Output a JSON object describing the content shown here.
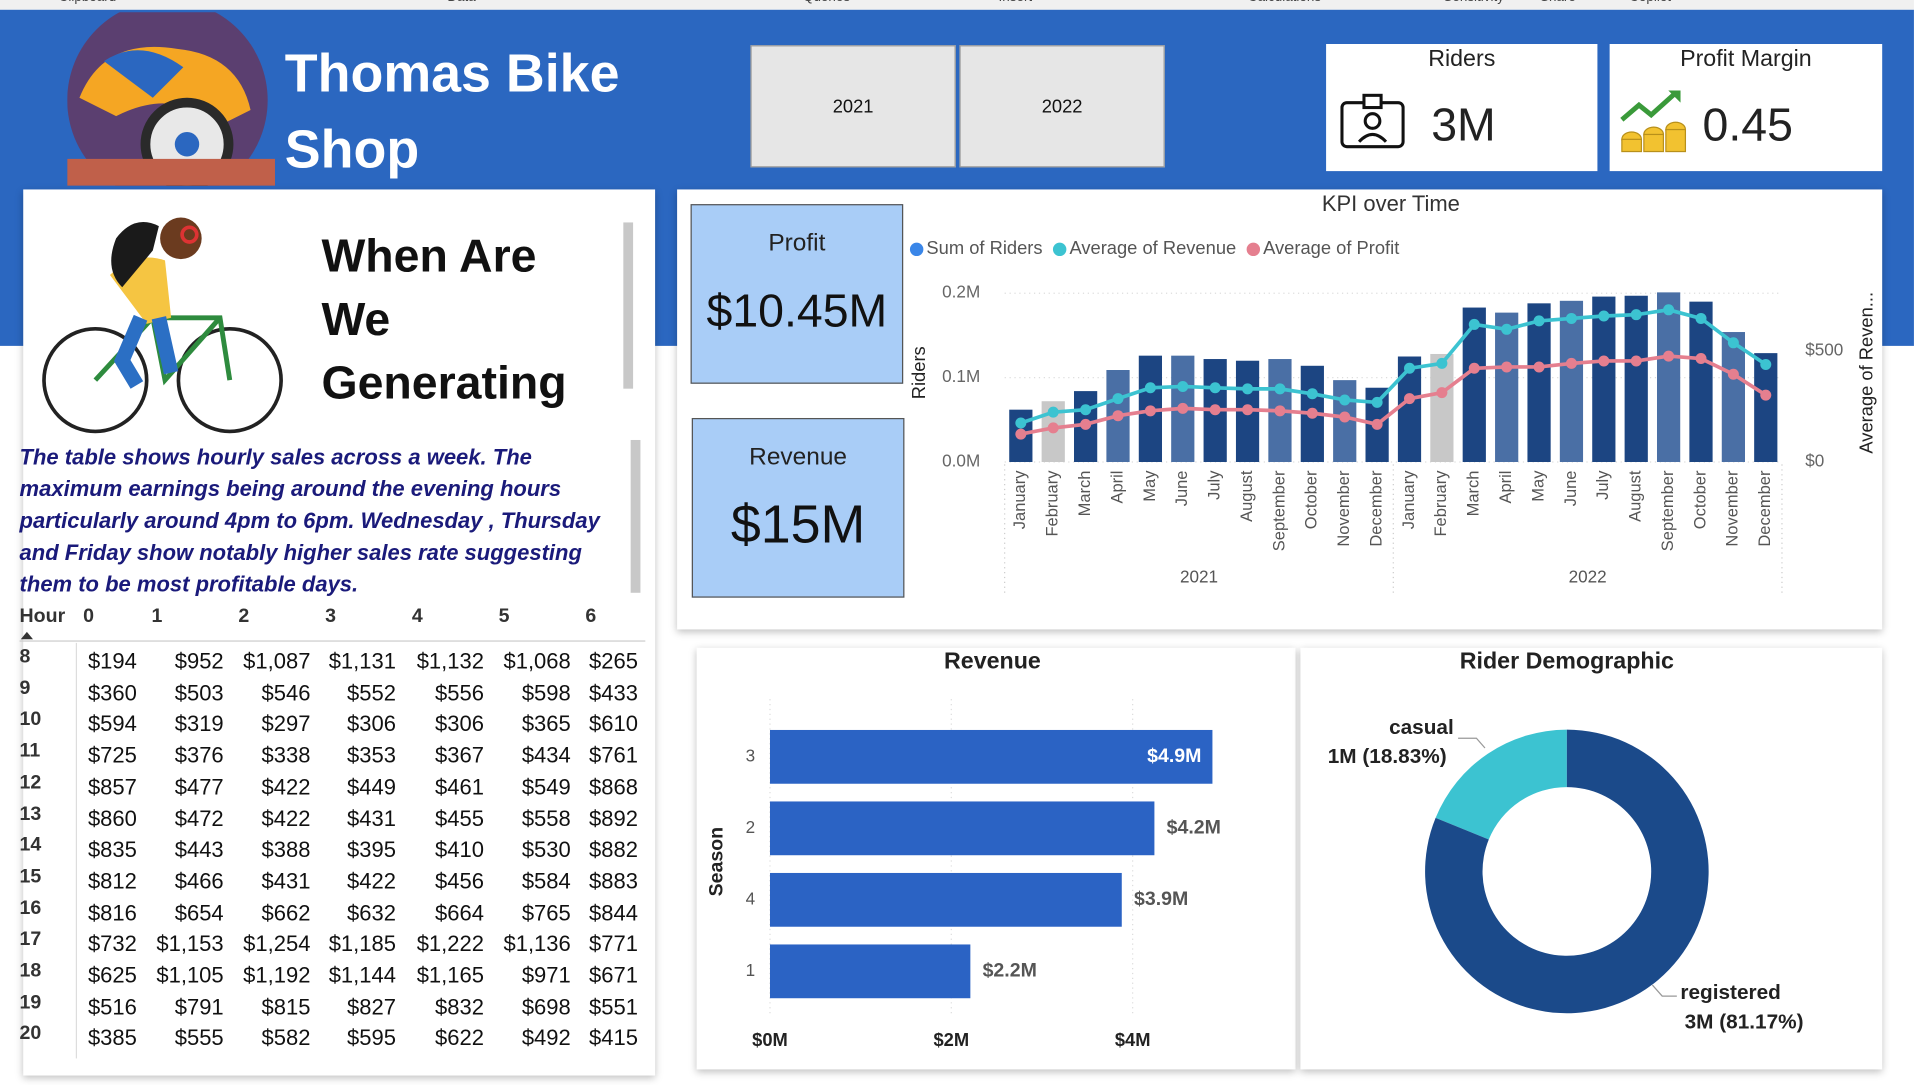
{
  "ribbon": [
    "Clipboard",
    "Data",
    "Queries",
    "Insert",
    "Calculations",
    "Sensitivity",
    "Share",
    "Copilot"
  ],
  "header": {
    "title": "Thomas Bike Shop"
  },
  "slicer": {
    "options": [
      "2021",
      "2022"
    ]
  },
  "cards": [
    {
      "label": "Riders",
      "value": "3M"
    },
    {
      "label": "Profit Margin",
      "value": "0.45"
    },
    {
      "label": "Profit",
      "value": "$10.45M"
    },
    {
      "label": "Revenue",
      "value": "$15M"
    }
  ],
  "story": {
    "heading": "When Are We Generating",
    "text": "The table shows hourly sales across a week. The maximum earnings being around the evening hours particularly around 4pm to 6pm. Wednesday , Thursday and Friday show notably higher sales rate suggesting them to be most profitable days."
  },
  "table": {
    "columns": [
      "Hour",
      "0",
      "1",
      "2",
      "3",
      "4",
      "5",
      "6"
    ],
    "rows": [
      [
        "8",
        "$194",
        "$952",
        "$1,087",
        "$1,131",
        "$1,132",
        "$1,068",
        "$265"
      ],
      [
        "9",
        "$360",
        "$503",
        "$546",
        "$552",
        "$556",
        "$598",
        "$433"
      ],
      [
        "10",
        "$594",
        "$319",
        "$297",
        "$306",
        "$306",
        "$365",
        "$610"
      ],
      [
        "11",
        "$725",
        "$376",
        "$338",
        "$353",
        "$367",
        "$434",
        "$761"
      ],
      [
        "12",
        "$857",
        "$477",
        "$422",
        "$449",
        "$461",
        "$549",
        "$868"
      ],
      [
        "13",
        "$860",
        "$472",
        "$422",
        "$431",
        "$455",
        "$558",
        "$892"
      ],
      [
        "14",
        "$835",
        "$443",
        "$388",
        "$395",
        "$410",
        "$530",
        "$882"
      ],
      [
        "15",
        "$812",
        "$466",
        "$431",
        "$422",
        "$456",
        "$584",
        "$883"
      ],
      [
        "16",
        "$816",
        "$654",
        "$662",
        "$632",
        "$664",
        "$765",
        "$844"
      ],
      [
        "17",
        "$732",
        "$1,153",
        "$1,254",
        "$1,185",
        "$1,222",
        "$1,136",
        "$771"
      ],
      [
        "18",
        "$625",
        "$1,105",
        "$1,192",
        "$1,144",
        "$1,165",
        "$971",
        "$671"
      ],
      [
        "19",
        "$516",
        "$791",
        "$815",
        "$827",
        "$832",
        "$698",
        "$551"
      ],
      [
        "20",
        "$385",
        "$555",
        "$582",
        "$595",
        "$622",
        "$492",
        "$415"
      ]
    ]
  },
  "chart_data": [
    {
      "type": "combo",
      "title": "KPI over Time",
      "y_label": "Riders",
      "y2_label": "Average of Reven...",
      "categories": [
        "January",
        "February",
        "March",
        "April",
        "May",
        "June",
        "July",
        "August",
        "September",
        "October",
        "November",
        "December",
        "January",
        "February",
        "March",
        "April",
        "May",
        "June",
        "July",
        "August",
        "September",
        "October",
        "November",
        "December"
      ],
      "groups": [
        "2021",
        "2022"
      ],
      "ylim": [
        0,
        210000
      ],
      "yticks": [
        {
          "value": 0,
          "label": "0.0M"
        },
        {
          "value": 100000,
          "label": "0.1M"
        },
        {
          "value": 200000,
          "label": "0.2M"
        }
      ],
      "y2lim": [
        0,
        800
      ],
      "y2ticks": [
        {
          "value": 0,
          "label": "$0"
        },
        {
          "value": 500,
          "label": "$500"
        }
      ],
      "grid": true,
      "series": [
        {
          "name": "Sum of Riders",
          "type": "bar",
          "color": "#3a86e8",
          "colors": [
            "#1c4582",
            "#c8c8c8",
            "#1c4582",
            "#4a6fa5",
            "#1c4582",
            "#4a6fa5",
            "#1c4582",
            "#1c4582",
            "#4a6fa5",
            "#1c4582",
            "#4a6fa5",
            "#1c4582",
            "#1c4582",
            "#c8c8c8",
            "#1c4582",
            "#4a6fa5",
            "#1c4582",
            "#4a6fa5",
            "#1c4582",
            "#1c4582",
            "#4a6fa5",
            "#1c4582",
            "#4a6fa5",
            "#1c4582"
          ],
          "values": [
            62000,
            72000,
            84000,
            109000,
            126000,
            126000,
            122000,
            120000,
            122000,
            114000,
            97000,
            88000,
            125000,
            128000,
            183000,
            177000,
            188000,
            191000,
            196000,
            197000,
            201000,
            190000,
            154000,
            129000
          ]
        },
        {
          "name": "Average of Revenue",
          "type": "line",
          "axis": "y2",
          "color": "#3cc3d1",
          "values": [
            176,
            225,
            236,
            286,
            335,
            341,
            335,
            330,
            330,
            308,
            280,
            269,
            423,
            445,
            621,
            599,
            637,
            648,
            659,
            665,
            687,
            648,
            538,
            440
          ]
        },
        {
          "name": "Average of Profit",
          "type": "line",
          "axis": "y2",
          "color": "#e57f8f",
          "values": [
            126,
            154,
            170,
            209,
            231,
            242,
            236,
            236,
            231,
            220,
            203,
            170,
            286,
            313,
            423,
            429,
            429,
            445,
            456,
            456,
            478,
            467,
            396,
            302
          ]
        }
      ]
    },
    {
      "type": "hbar",
      "title": "Revenue",
      "y_label": "Season",
      "categories": [
        "3",
        "2",
        "4",
        "1"
      ],
      "values": [
        4880000,
        4240000,
        3880000,
        2210000
      ],
      "value_labels": [
        "$4.9M",
        "$4.2M",
        "$3.9M",
        "$2.2M"
      ],
      "color": "#2b63c4",
      "xlim": [
        0,
        5500000
      ],
      "xticks": [
        {
          "value": 0,
          "label": "$0M"
        },
        {
          "value": 2000000,
          "label": "$2M"
        },
        {
          "value": 4000000,
          "label": "$4M"
        }
      ],
      "grid": true
    },
    {
      "type": "donut",
      "title": "Rider Demographic",
      "categories": [
        "casual",
        "registered"
      ],
      "values": [
        18.83,
        81.17
      ],
      "value_labels": [
        "1M (18.83%)",
        "3M (81.17%)"
      ],
      "colors": [
        "#3cc3d1",
        "#1b4a8a"
      ]
    }
  ]
}
